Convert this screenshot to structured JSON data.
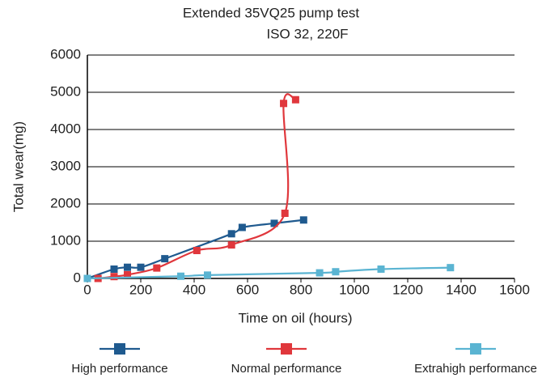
{
  "chart_data": {
    "type": "line",
    "title": "Extended 35VQ25 pump test",
    "subtitle": "ISO 32, 220F",
    "x_label": "Time on oil (hours)",
    "y_label": "Total wear(mg)",
    "xlim": [
      0,
      1600
    ],
    "xticks": [
      0,
      200,
      400,
      600,
      800,
      1000,
      1200,
      1400,
      1600
    ],
    "ylim": [
      0,
      6000
    ],
    "yticks": [
      0,
      1000,
      2000,
      3000,
      4000,
      5000,
      6000
    ],
    "grid": true,
    "series": [
      {
        "name": "High performance",
        "color": "#1f5a8f",
        "x": [
          0,
          100,
          150,
          200,
          290,
          540,
          580,
          700,
          810
        ],
        "values": [
          0,
          250,
          300,
          300,
          530,
          1200,
          1370,
          1480,
          1570
        ]
      },
      {
        "name": "Normal performance",
        "color": "#e0373c",
        "x": [
          40,
          100,
          150,
          260,
          410,
          540,
          740,
          735,
          780
        ],
        "values": [
          0,
          50,
          100,
          280,
          750,
          900,
          1750,
          4700,
          4800
        ]
      },
      {
        "name": "Extrahigh performance",
        "color": "#5ab4d2",
        "x": [
          0,
          350,
          450,
          870,
          930,
          1100,
          1360
        ],
        "values": [
          0,
          60,
          90,
          150,
          180,
          250,
          290
        ]
      }
    ]
  }
}
